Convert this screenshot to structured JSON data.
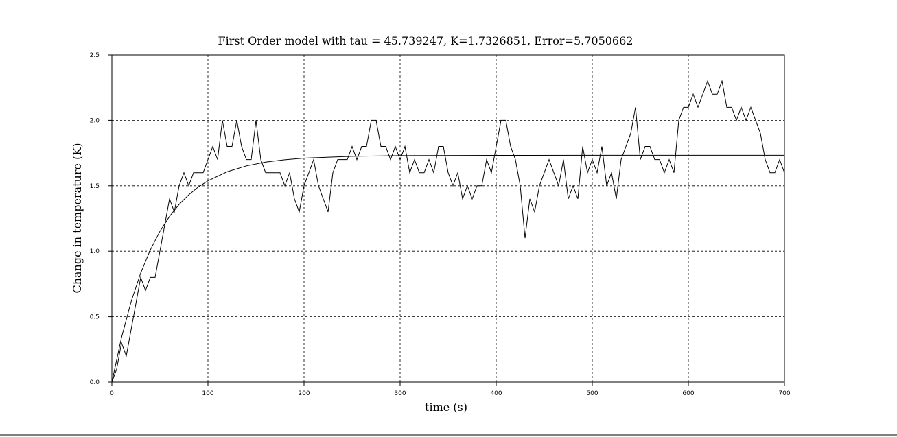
{
  "chart_data": {
    "type": "line",
    "title": "First Order model with tau = 45.739247, K=1.7326851, Error=5.7050662",
    "x_label": "time (s)",
    "y_label": "Change in temperature (K)",
    "xlim": [
      0,
      700
    ],
    "ylim": [
      0,
      2.5
    ],
    "xticks": [
      0,
      100,
      200,
      300,
      400,
      500,
      600,
      700
    ],
    "yticks": [
      {
        "value": 0,
        "label": "0.0"
      },
      {
        "value": 0.5,
        "label": "0.5"
      },
      {
        "value": 1,
        "label": "1.0"
      },
      {
        "value": 1.5,
        "label": "1.5"
      },
      {
        "value": 2,
        "label": "2.0"
      },
      {
        "value": 2.5,
        "label": "2.5"
      }
    ],
    "grid": true,
    "series": [
      {
        "color": "#000000",
        "x": [
          0,
          5,
          10,
          15,
          20,
          25,
          30,
          35,
          40,
          45,
          50,
          55,
          60,
          65,
          70,
          75,
          80,
          85,
          90,
          95,
          100,
          105,
          110,
          115,
          120,
          125,
          130,
          135,
          140,
          145,
          150,
          155,
          160,
          165,
          170,
          175,
          180,
          185,
          190,
          195,
          200,
          205,
          210,
          215,
          220,
          225,
          230,
          235,
          240,
          245,
          250,
          255,
          260,
          265,
          270,
          275,
          280,
          285,
          290,
          295,
          300,
          305,
          310,
          315,
          320,
          325,
          330,
          335,
          340,
          345,
          350,
          355,
          360,
          365,
          370,
          375,
          380,
          385,
          390,
          395,
          400,
          405,
          410,
          415,
          420,
          425,
          430,
          435,
          440,
          445,
          450,
          455,
          460,
          465,
          470,
          475,
          480,
          485,
          490,
          495,
          500,
          505,
          510,
          515,
          520,
          525,
          530,
          535,
          540,
          545,
          550,
          555,
          560,
          565,
          570,
          575,
          580,
          585,
          590,
          595,
          600,
          605,
          610,
          615,
          620,
          625,
          630,
          635,
          640,
          645,
          650,
          655,
          660,
          665,
          670,
          675,
          680,
          685,
          690,
          695,
          700
        ],
        "values": [
          0,
          0.1,
          0.3,
          0.2,
          0.4,
          0.6,
          0.8,
          0.7,
          0.8,
          0.8,
          1.0,
          1.2,
          1.4,
          1.3,
          1.5,
          1.6,
          1.5,
          1.6,
          1.6,
          1.6,
          1.7,
          1.8,
          1.7,
          2.0,
          1.8,
          1.8,
          2.0,
          1.8,
          1.7,
          1.7,
          2.0,
          1.7,
          1.6,
          1.6,
          1.6,
          1.6,
          1.5,
          1.6,
          1.4,
          1.3,
          1.5,
          1.6,
          1.7,
          1.5,
          1.4,
          1.3,
          1.6,
          1.7,
          1.7,
          1.7,
          1.8,
          1.7,
          1.8,
          1.8,
          2.0,
          2.0,
          1.8,
          1.8,
          1.7,
          1.8,
          1.7,
          1.8,
          1.6,
          1.7,
          1.6,
          1.6,
          1.7,
          1.6,
          1.8,
          1.8,
          1.6,
          1.5,
          1.6,
          1.4,
          1.5,
          1.4,
          1.5,
          1.5,
          1.7,
          1.6,
          1.8,
          2.0,
          2.0,
          1.8,
          1.7,
          1.5,
          1.1,
          1.4,
          1.3,
          1.5,
          1.6,
          1.7,
          1.6,
          1.5,
          1.7,
          1.4,
          1.5,
          1.4,
          1.8,
          1.6,
          1.7,
          1.6,
          1.8,
          1.5,
          1.6,
          1.4,
          1.7,
          1.8,
          1.9,
          2.1,
          1.7,
          1.8,
          1.8,
          1.7,
          1.7,
          1.6,
          1.7,
          1.6,
          2.0,
          2.1,
          2.1,
          2.2,
          2.1,
          2.2,
          2.3,
          2.2,
          2.2,
          2.3,
          2.1,
          2.1,
          2.0,
          2.1,
          2.0,
          2.1,
          2.0,
          1.9,
          1.7,
          1.6,
          1.6,
          1.7,
          1.6
        ]
      },
      {
        "color": "#000000",
        "x": [
          0,
          10,
          20,
          30,
          40,
          50,
          60,
          70,
          80,
          90,
          100,
          120,
          140,
          160,
          180,
          200,
          250,
          300,
          400,
          500,
          600,
          700
        ],
        "values": [
          0,
          0.34,
          0.614,
          0.834,
          1.01,
          1.152,
          1.266,
          1.358,
          1.431,
          1.491,
          1.538,
          1.607,
          1.652,
          1.681,
          1.699,
          1.711,
          1.725,
          1.73,
          1.732,
          1.733,
          1.733,
          1.733
        ]
      }
    ]
  }
}
